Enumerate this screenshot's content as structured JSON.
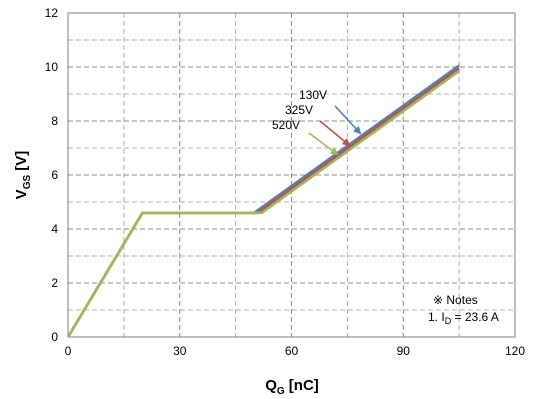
{
  "chart_data": {
    "type": "line",
    "xlabel_main": "Q",
    "xlabel_sub": "G",
    "xlabel_unit": " [nC]",
    "ylabel_main": "V",
    "ylabel_sub": "GS",
    "ylabel_unit": " [V]",
    "xlim": [
      0,
      120
    ],
    "ylim": [
      0,
      12
    ],
    "xticks": [
      0,
      30,
      60,
      90,
      120
    ],
    "yticks": [
      0,
      2,
      4,
      6,
      8,
      10,
      12
    ],
    "x_minor_grid": [
      15,
      45,
      75,
      105
    ],
    "y_minor_grid": [
      1,
      3,
      5,
      7,
      9,
      11
    ],
    "grid": "dashed",
    "series": [
      {
        "name": "130V",
        "color": "#4f81bd",
        "x": [
          0,
          20,
          50,
          105
        ],
        "y": [
          0,
          4.6,
          4.6,
          10.05
        ]
      },
      {
        "name": "325V",
        "color": "#c0504d",
        "x": [
          0,
          20,
          51,
          105
        ],
        "y": [
          0,
          4.6,
          4.6,
          9.95
        ]
      },
      {
        "name": "520V",
        "color": "#9bbb59",
        "x": [
          0,
          20,
          52,
          105
        ],
        "y": [
          0,
          4.6,
          4.6,
          9.85
        ]
      }
    ],
    "annotations": {
      "notes_title": "※ Notes",
      "notes_line_prefix": "1. I",
      "notes_line_sub": "D",
      "notes_line_suffix": " = 23.6 A"
    }
  }
}
